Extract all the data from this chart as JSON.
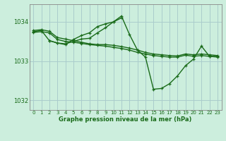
{
  "title": "Graphe pression niveau de la mer (hPa)",
  "background_color": "#cceedd",
  "grid_color": "#aacccc",
  "line_color": "#1a6b1a",
  "spine_color": "#888888",
  "xlim": [
    -0.5,
    23.5
  ],
  "ylim": [
    1031.75,
    1034.45
  ],
  "yticks": [
    1032,
    1033,
    1034
  ],
  "xticks": [
    0,
    1,
    2,
    3,
    4,
    5,
    6,
    7,
    8,
    9,
    10,
    11,
    12,
    13,
    14,
    15,
    16,
    17,
    18,
    19,
    20,
    21,
    22,
    23
  ],
  "series": [
    {
      "x": [
        0,
        1,
        2,
        3,
        4,
        5,
        6,
        7,
        8,
        9,
        10,
        11,
        12,
        13,
        14,
        15,
        16,
        17,
        18,
        19,
        20,
        21,
        22,
        23
      ],
      "y": [
        1033.73,
        1033.75,
        1033.72,
        1033.55,
        1033.5,
        1033.48,
        1033.45,
        1033.42,
        1033.4,
        1033.38,
        1033.35,
        1033.32,
        1033.28,
        1033.22,
        1033.18,
        1033.14,
        1033.12,
        1033.1,
        1033.1,
        1033.15,
        1033.12,
        1033.14,
        1033.12,
        1033.1
      ]
    },
    {
      "x": [
        0,
        1,
        2,
        3,
        4,
        5,
        6,
        7,
        8,
        9,
        10,
        11,
        12,
        13,
        14,
        15,
        16,
        17,
        18,
        19,
        20,
        21,
        22,
        23
      ],
      "y": [
        1033.78,
        1033.8,
        1033.76,
        1033.6,
        1033.56,
        1033.52,
        1033.48,
        1033.44,
        1033.42,
        1033.42,
        1033.4,
        1033.37,
        1033.33,
        1033.28,
        1033.22,
        1033.18,
        1033.16,
        1033.14,
        1033.13,
        1033.18,
        1033.16,
        1033.18,
        1033.16,
        1033.14
      ]
    },
    {
      "x": [
        0,
        1,
        2,
        3,
        4,
        5,
        6,
        7,
        8,
        9,
        10,
        11,
        12,
        13,
        14,
        15,
        16,
        17,
        18,
        19,
        20,
        21,
        22,
        23
      ],
      "y": [
        1033.75,
        1033.78,
        1033.52,
        1033.46,
        1033.42,
        1033.55,
        1033.65,
        1033.72,
        1033.88,
        1033.95,
        1034.0,
        1034.15,
        1033.68,
        1033.28,
        1033.1,
        1032.28,
        1032.3,
        1032.42,
        1032.62,
        1032.88,
        1033.05,
        1033.38,
        1033.12,
        1033.12
      ]
    },
    {
      "x": [
        2,
        3,
        4,
        5,
        6,
        7,
        8,
        9,
        10,
        11
      ],
      "y": [
        1033.52,
        1033.46,
        1033.44,
        1033.5,
        1033.56,
        1033.58,
        1033.72,
        1033.85,
        1034.0,
        1034.1
      ]
    }
  ]
}
